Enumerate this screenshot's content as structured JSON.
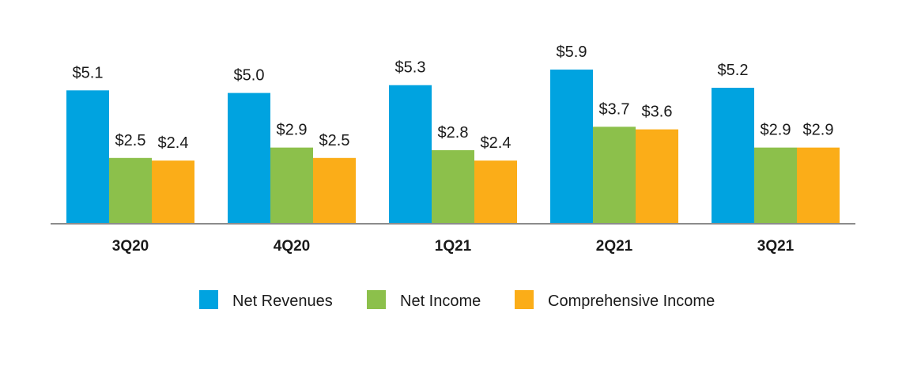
{
  "chart_data": {
    "type": "bar",
    "title": "",
    "xlabel": "",
    "ylabel": "",
    "categories": [
      "3Q20",
      "4Q20",
      "1Q21",
      "2Q21",
      "3Q21"
    ],
    "series": [
      {
        "name": "Net Revenues",
        "color": "#00a3e0",
        "values": [
          5.1,
          5.0,
          5.3,
          5.9,
          5.2
        ],
        "labels": [
          "$5.1",
          "$5.0",
          "$5.3",
          "$5.9",
          "$5.2"
        ]
      },
      {
        "name": "Net Income",
        "color": "#8cc04b",
        "values": [
          2.5,
          2.9,
          2.8,
          3.7,
          2.9
        ],
        "labels": [
          "$2.5",
          "$2.9",
          "$2.8",
          "$3.7",
          "$2.9"
        ]
      },
      {
        "name": "Comprehensive Income",
        "color": "#fbad18",
        "values": [
          2.4,
          2.5,
          2.4,
          3.6,
          2.9
        ],
        "labels": [
          "$2.4",
          "$2.5",
          "$2.4",
          "$3.6",
          "$2.9"
        ]
      }
    ],
    "ylim": [
      0,
      5.9
    ],
    "grid": false,
    "legend": "bottom-center",
    "axis_color": "#8c8c8c"
  }
}
